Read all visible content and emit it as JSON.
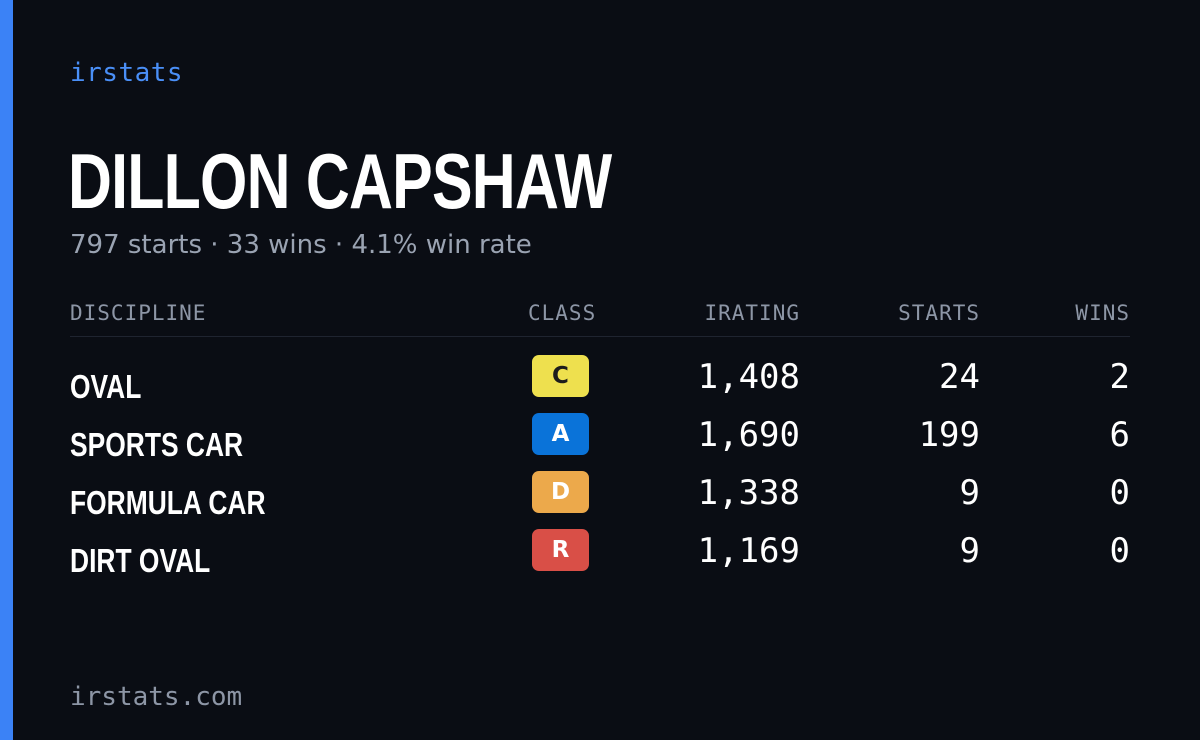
{
  "brand": {
    "name": "irstats",
    "url": "irstats.com",
    "accent_color": "#3b82f6"
  },
  "driver": {
    "name": "DILLON CAPSHAW",
    "summary": "797 starts · 33 wins · 4.1% win rate"
  },
  "table": {
    "headers": {
      "discipline": "DISCIPLINE",
      "class": "CLASS",
      "irating": "IRATING",
      "starts": "STARTS",
      "wins": "WINS"
    },
    "rows": [
      {
        "discipline": "OVAL",
        "class": "C",
        "class_bg": "#eee04e",
        "class_fg": "#1c1c1c",
        "irating": "1,408",
        "starts": "24",
        "wins": "2"
      },
      {
        "discipline": "SPORTS CAR",
        "class": "A",
        "class_bg": "#0a73d9",
        "class_fg": "#ffffff",
        "irating": "1,690",
        "starts": "199",
        "wins": "6"
      },
      {
        "discipline": "FORMULA CAR",
        "class": "D",
        "class_bg": "#eca94b",
        "class_fg": "#ffffff",
        "irating": "1,338",
        "starts": "9",
        "wins": "0"
      },
      {
        "discipline": "DIRT OVAL",
        "class": "R",
        "class_bg": "#d94f47",
        "class_fg": "#ffffff",
        "irating": "1,169",
        "starts": "9",
        "wins": "0"
      }
    ]
  }
}
